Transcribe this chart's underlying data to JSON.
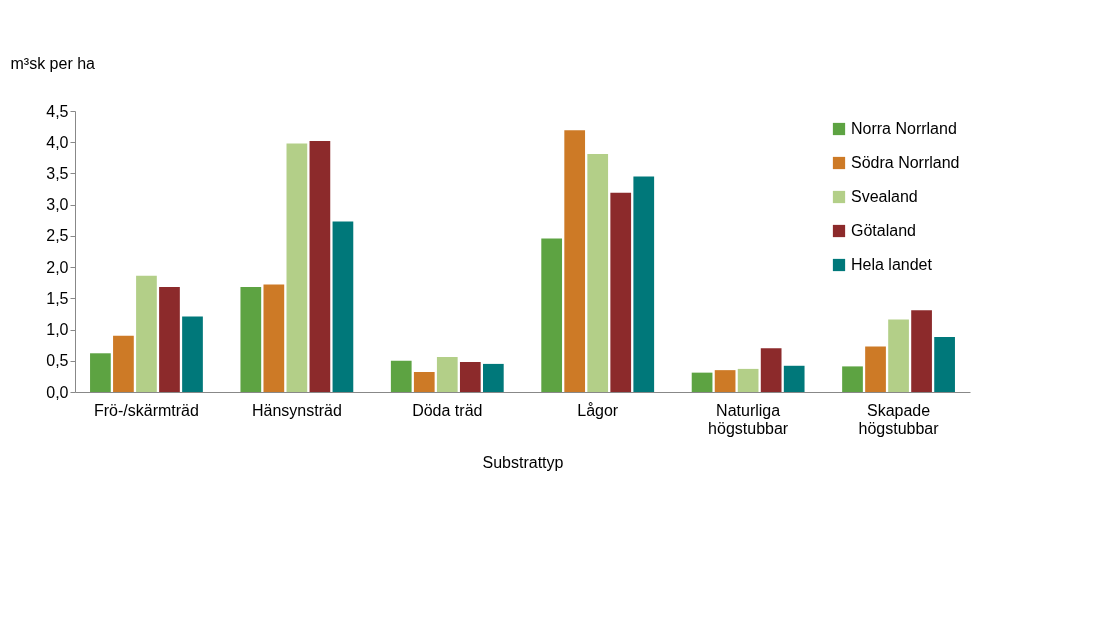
{
  "chart_data": {
    "type": "bar",
    "xlabel": "Substrattyp",
    "ylabel": "m³sk per ha",
    "categories": [
      "Frö-/skärmträd",
      "Hänsynsträd",
      "Döda träd",
      "Lågor",
      "Naturliga\nhögstubbar",
      "Skapade\nhögstubbar"
    ],
    "series": [
      {
        "name": "Norra Norrland",
        "color": "#5da342",
        "values": [
          0.62,
          1.68,
          0.5,
          2.46,
          0.31,
          0.41
        ]
      },
      {
        "name": "Södra Norrland",
        "color": "#cd7a26",
        "values": [
          0.9,
          1.72,
          0.32,
          4.19,
          0.35,
          0.73
        ]
      },
      {
        "name": "Svealand",
        "color": "#b3cf88",
        "values": [
          1.86,
          3.98,
          0.56,
          3.81,
          0.37,
          1.16
        ]
      },
      {
        "name": "Götaland",
        "color": "#8c2a2b",
        "values": [
          1.68,
          4.02,
          0.48,
          3.19,
          0.7,
          1.31
        ]
      },
      {
        "name": "Hela landet",
        "color": "#00787a",
        "values": [
          1.21,
          2.73,
          0.45,
          3.45,
          0.42,
          0.88
        ]
      }
    ],
    "ylim": [
      0,
      4.5
    ],
    "yticks": [
      {
        "value": 0,
        "label": "0,0"
      },
      {
        "value": 0.5,
        "label": "0,5"
      },
      {
        "value": 1,
        "label": "1,0"
      },
      {
        "value": 1.5,
        "label": "1,5"
      },
      {
        "value": 2,
        "label": "2,0"
      },
      {
        "value": 2.5,
        "label": "2,5"
      },
      {
        "value": 3,
        "label": "3,0"
      },
      {
        "value": 3.5,
        "label": "3,5"
      },
      {
        "value": 4,
        "label": "4,0"
      },
      {
        "value": 4.5,
        "label": "4,5"
      }
    ],
    "grid": false,
    "legend": "top right"
  }
}
